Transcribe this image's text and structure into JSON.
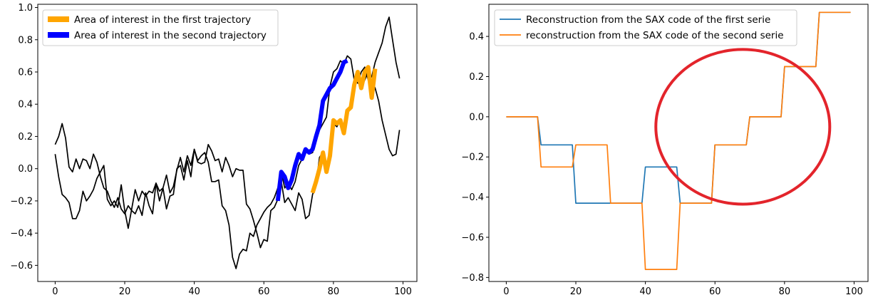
{
  "chart_data": [
    {
      "type": "line",
      "xlim": [
        -5,
        104
      ],
      "ylim": [
        -0.7,
        1.02
      ],
      "xticks": [
        0,
        20,
        40,
        60,
        80,
        100
      ],
      "yticks": [
        -0.6,
        -0.4,
        -0.2,
        0.0,
        0.2,
        0.4,
        0.6,
        0.8,
        1.0
      ],
      "ytick_labels": [
        "−0.6",
        "−0.4",
        "−0.2",
        "0.0",
        "0.2",
        "0.4",
        "0.6",
        "0.8",
        "1.0"
      ],
      "xtick_labels": [
        "0",
        "20",
        "40",
        "60",
        "80",
        "100"
      ],
      "legend_position": "upper-left",
      "series": [
        {
          "color": "#000000",
          "values": [
            0.09,
            -0.05,
            -0.16,
            -0.18,
            -0.21,
            -0.31,
            -0.31,
            -0.26,
            -0.14,
            -0.2,
            -0.17,
            -0.13,
            -0.06,
            -0.02,
            0.02,
            -0.19,
            -0.23,
            -0.2,
            -0.24,
            -0.1,
            -0.26,
            -0.37,
            -0.25,
            -0.13,
            -0.2,
            -0.14,
            -0.17,
            -0.14,
            -0.15,
            -0.09,
            -0.2,
            -0.12,
            -0.04,
            -0.15,
            -0.11,
            -0.01,
            0.07,
            -0.02,
            0.08,
            0.02,
            0.12,
            0.05,
            0.08,
            0.1,
            0.04,
            -0.08,
            -0.08,
            -0.07,
            -0.23,
            -0.26,
            -0.35,
            -0.55,
            -0.62,
            -0.53,
            -0.5,
            -0.51,
            -0.4,
            -0.42,
            -0.35,
            -0.31,
            -0.27,
            -0.24,
            -0.22,
            -0.18,
            -0.12,
            -0.08,
            -0.21,
            -0.18,
            -0.22,
            -0.26,
            -0.15,
            -0.19,
            -0.31,
            -0.29,
            -0.16,
            -0.1,
            0.07,
            0.1,
            -0.02,
            0.05,
            0.28,
            0.26,
            0.3,
            0.23,
            0.36,
            0.38,
            0.52,
            0.58,
            0.5,
            0.55,
            0.6,
            0.55,
            0.5,
            0.42,
            0.3,
            0.21,
            0.12,
            0.08,
            0.09,
            0.24
          ]
        },
        {
          "color": "#000000",
          "values": [
            0.15,
            0.2,
            0.28,
            0.19,
            0.01,
            -0.02,
            0.06,
            0.0,
            0.06,
            0.05,
            0.0,
            0.09,
            0.04,
            -0.05,
            -0.12,
            -0.14,
            -0.2,
            -0.24,
            -0.18,
            -0.25,
            -0.28,
            -0.23,
            -0.26,
            -0.28,
            -0.23,
            -0.29,
            -0.15,
            -0.23,
            -0.28,
            -0.09,
            -0.14,
            -0.12,
            -0.25,
            -0.17,
            -0.16,
            0.0,
            0.02,
            -0.07,
            0.05,
            -0.05,
            0.12,
            0.04,
            0.03,
            0.04,
            0.15,
            0.11,
            0.05,
            0.06,
            -0.02,
            0.07,
            0.02,
            -0.05,
            0.0,
            -0.01,
            -0.01,
            -0.22,
            -0.25,
            -0.32,
            -0.4,
            -0.49,
            -0.44,
            -0.45,
            -0.26,
            -0.24,
            -0.19,
            -0.02,
            -0.12,
            -0.09,
            -0.13,
            -0.08,
            0.02,
            0.06,
            0.12,
            0.09,
            0.1,
            0.18,
            0.24,
            0.28,
            0.32,
            0.51,
            0.6,
            0.62,
            0.67,
            0.65,
            0.7,
            0.68,
            0.55,
            0.53,
            0.6,
            0.63,
            0.55,
            0.57,
            0.66,
            0.72,
            0.78,
            0.88,
            0.94,
            0.8,
            0.66,
            0.56
          ]
        },
        {
          "name": "Area of interest in the first trajectory",
          "color": "#ffa500",
          "x_start": 74,
          "values": [
            -0.15,
            -0.08,
            0.0,
            0.1,
            -0.02,
            0.08,
            0.3,
            0.28,
            0.3,
            0.22,
            0.36,
            0.38,
            0.52,
            0.6,
            0.5,
            0.6,
            0.63,
            0.44,
            0.62
          ]
        },
        {
          "name": "Area of interest in the second trajectory",
          "color": "#0000ff",
          "x_start": 64,
          "values": [
            -0.2,
            -0.02,
            -0.05,
            -0.12,
            -0.07,
            0.02,
            0.09,
            0.06,
            0.12,
            0.1,
            0.12,
            0.2,
            0.27,
            0.42,
            0.46,
            0.5,
            0.52,
            0.56,
            0.6,
            0.66,
            0.67
          ]
        }
      ]
    },
    {
      "type": "line",
      "xlim": [
        -5,
        104
      ],
      "ylim": [
        -0.82,
        0.56
      ],
      "xticks": [
        0,
        20,
        40,
        60,
        80,
        100
      ],
      "yticks": [
        -0.8,
        -0.6,
        -0.4,
        -0.2,
        0.0,
        0.2,
        0.4
      ],
      "ytick_labels": [
        "−0.8",
        "−0.6",
        "−0.4",
        "−0.2",
        "0.0",
        "0.2",
        "0.4"
      ],
      "xtick_labels": [
        "0",
        "20",
        "40",
        "60",
        "80",
        "100"
      ],
      "legend_position": "upper-left",
      "segments_per_step": 10,
      "series": [
        {
          "name": "Reconstruction from the SAX code of the first serie",
          "color": "#1f77b4",
          "levels": [
            0.0,
            -0.14,
            -0.43,
            -0.43,
            -0.25,
            -0.43,
            -0.14,
            0.0,
            0.25,
            0.52
          ]
        },
        {
          "name": "reconstruction from the SAX code of the second serie",
          "color": "#ff7f0e",
          "levels": [
            0.0,
            -0.25,
            -0.14,
            -0.43,
            -0.76,
            -0.43,
            -0.14,
            0.0,
            0.25,
            0.52
          ]
        }
      ],
      "annotation": {
        "shape": "ellipse",
        "color": "#e3242b",
        "center_x": 68,
        "center_y": -0.05,
        "rx_data": 25,
        "ry_data": 0.385
      }
    }
  ]
}
